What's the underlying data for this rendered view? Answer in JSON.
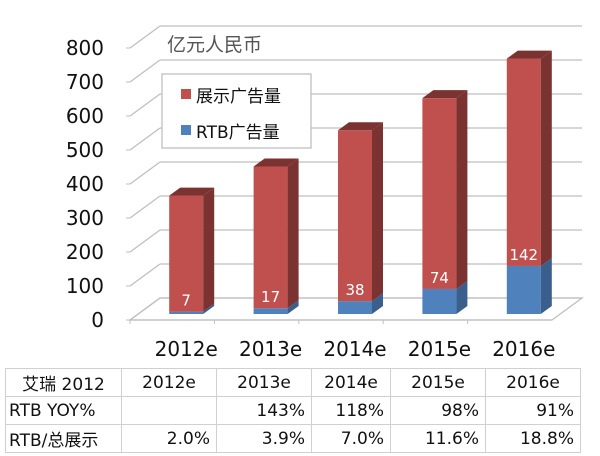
{
  "chart_data": {
    "type": "bar",
    "stacked": true,
    "three_d": true,
    "unit_label": "亿元人民币",
    "categories": [
      "2012e",
      "2013e",
      "2014e",
      "2015e",
      "2016e"
    ],
    "series": [
      {
        "name": "RTB广告量",
        "color": "#4F81BD",
        "values": [
          7,
          17,
          38,
          74,
          142
        ],
        "data_labels": [
          "7",
          "17",
          "38",
          "74",
          "142"
        ]
      },
      {
        "name": "展示广告量",
        "color": "#C0504D",
        "values": [
          343,
          419,
          505,
          564,
          613
        ]
      }
    ],
    "ylim": [
      0,
      800
    ],
    "yticks": [
      "0",
      "100",
      "200",
      "300",
      "400",
      "500",
      "600",
      "700",
      "800"
    ],
    "grid": true,
    "legend_position": "top-left"
  },
  "table": {
    "header": [
      "艾瑞 2012",
      "2012e",
      "2013e",
      "2014e",
      "2015e",
      "2016e"
    ],
    "rows": [
      [
        "RTB YOY%",
        "",
        "143%",
        "118%",
        "98%",
        "91%"
      ],
      [
        "RTB/总展示",
        "2.0%",
        "3.9%",
        "7.0%",
        "11.6%",
        "18.8%"
      ]
    ]
  }
}
